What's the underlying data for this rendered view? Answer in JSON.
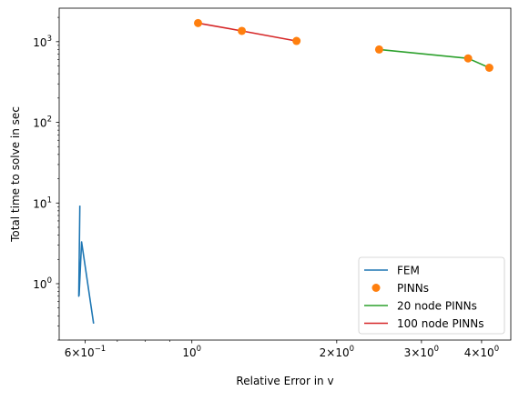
{
  "chart_data": {
    "type": "line",
    "xlabel": "Relative Error in v",
    "ylabel": "Total time to solve in sec",
    "xscale": "log",
    "yscale": "log",
    "xlim": [
      0.53,
      4.6
    ],
    "ylim": [
      0.2,
      2600
    ],
    "grid": false,
    "legend_position": "lower right",
    "x_ticks": [
      {
        "base": "6",
        "mult": "×",
        "ten": "10",
        "exp": "−1",
        "value": 0.6
      },
      {
        "base": "",
        "mult": "",
        "ten": "10",
        "exp": "0",
        "value": 1
      },
      {
        "base": "2",
        "mult": "×",
        "ten": "10",
        "exp": "0",
        "value": 2
      },
      {
        "base": "3",
        "mult": "×",
        "ten": "10",
        "exp": "0",
        "value": 3
      },
      {
        "base": "4",
        "mult": "×",
        "ten": "10",
        "exp": "0",
        "value": 4
      }
    ],
    "y_ticks": [
      {
        "ten": "10",
        "exp": "0",
        "value": 1
      },
      {
        "ten": "10",
        "exp": "1",
        "value": 10
      },
      {
        "ten": "10",
        "exp": "2",
        "value": 100
      },
      {
        "ten": "10",
        "exp": "3",
        "value": 1000
      }
    ],
    "series": [
      {
        "name": "FEM",
        "kind": "line",
        "color": "#1f77b4",
        "x": [
          0.585,
          0.582,
          0.583,
          0.59,
          0.625
        ],
        "y": [
          9.3,
          0.7,
          0.72,
          3.3,
          0.32
        ]
      },
      {
        "name": "PINNs",
        "kind": "scatter",
        "color": "#ff7f0e",
        "x": [
          1.03,
          1.27,
          1.65,
          2.45,
          3.75,
          4.15
        ],
        "y": [
          1700,
          1360,
          1020,
          800,
          620,
          475
        ]
      },
      {
        "name": "20 node PINNs",
        "kind": "line",
        "color": "#2ca02c",
        "x": [
          2.45,
          3.75,
          4.15
        ],
        "y": [
          800,
          620,
          475
        ]
      },
      {
        "name": "100 node PINNs",
        "kind": "line",
        "color": "#d62728",
        "x": [
          1.03,
          1.27,
          1.65
        ],
        "y": [
          1700,
          1360,
          1020
        ]
      }
    ]
  }
}
